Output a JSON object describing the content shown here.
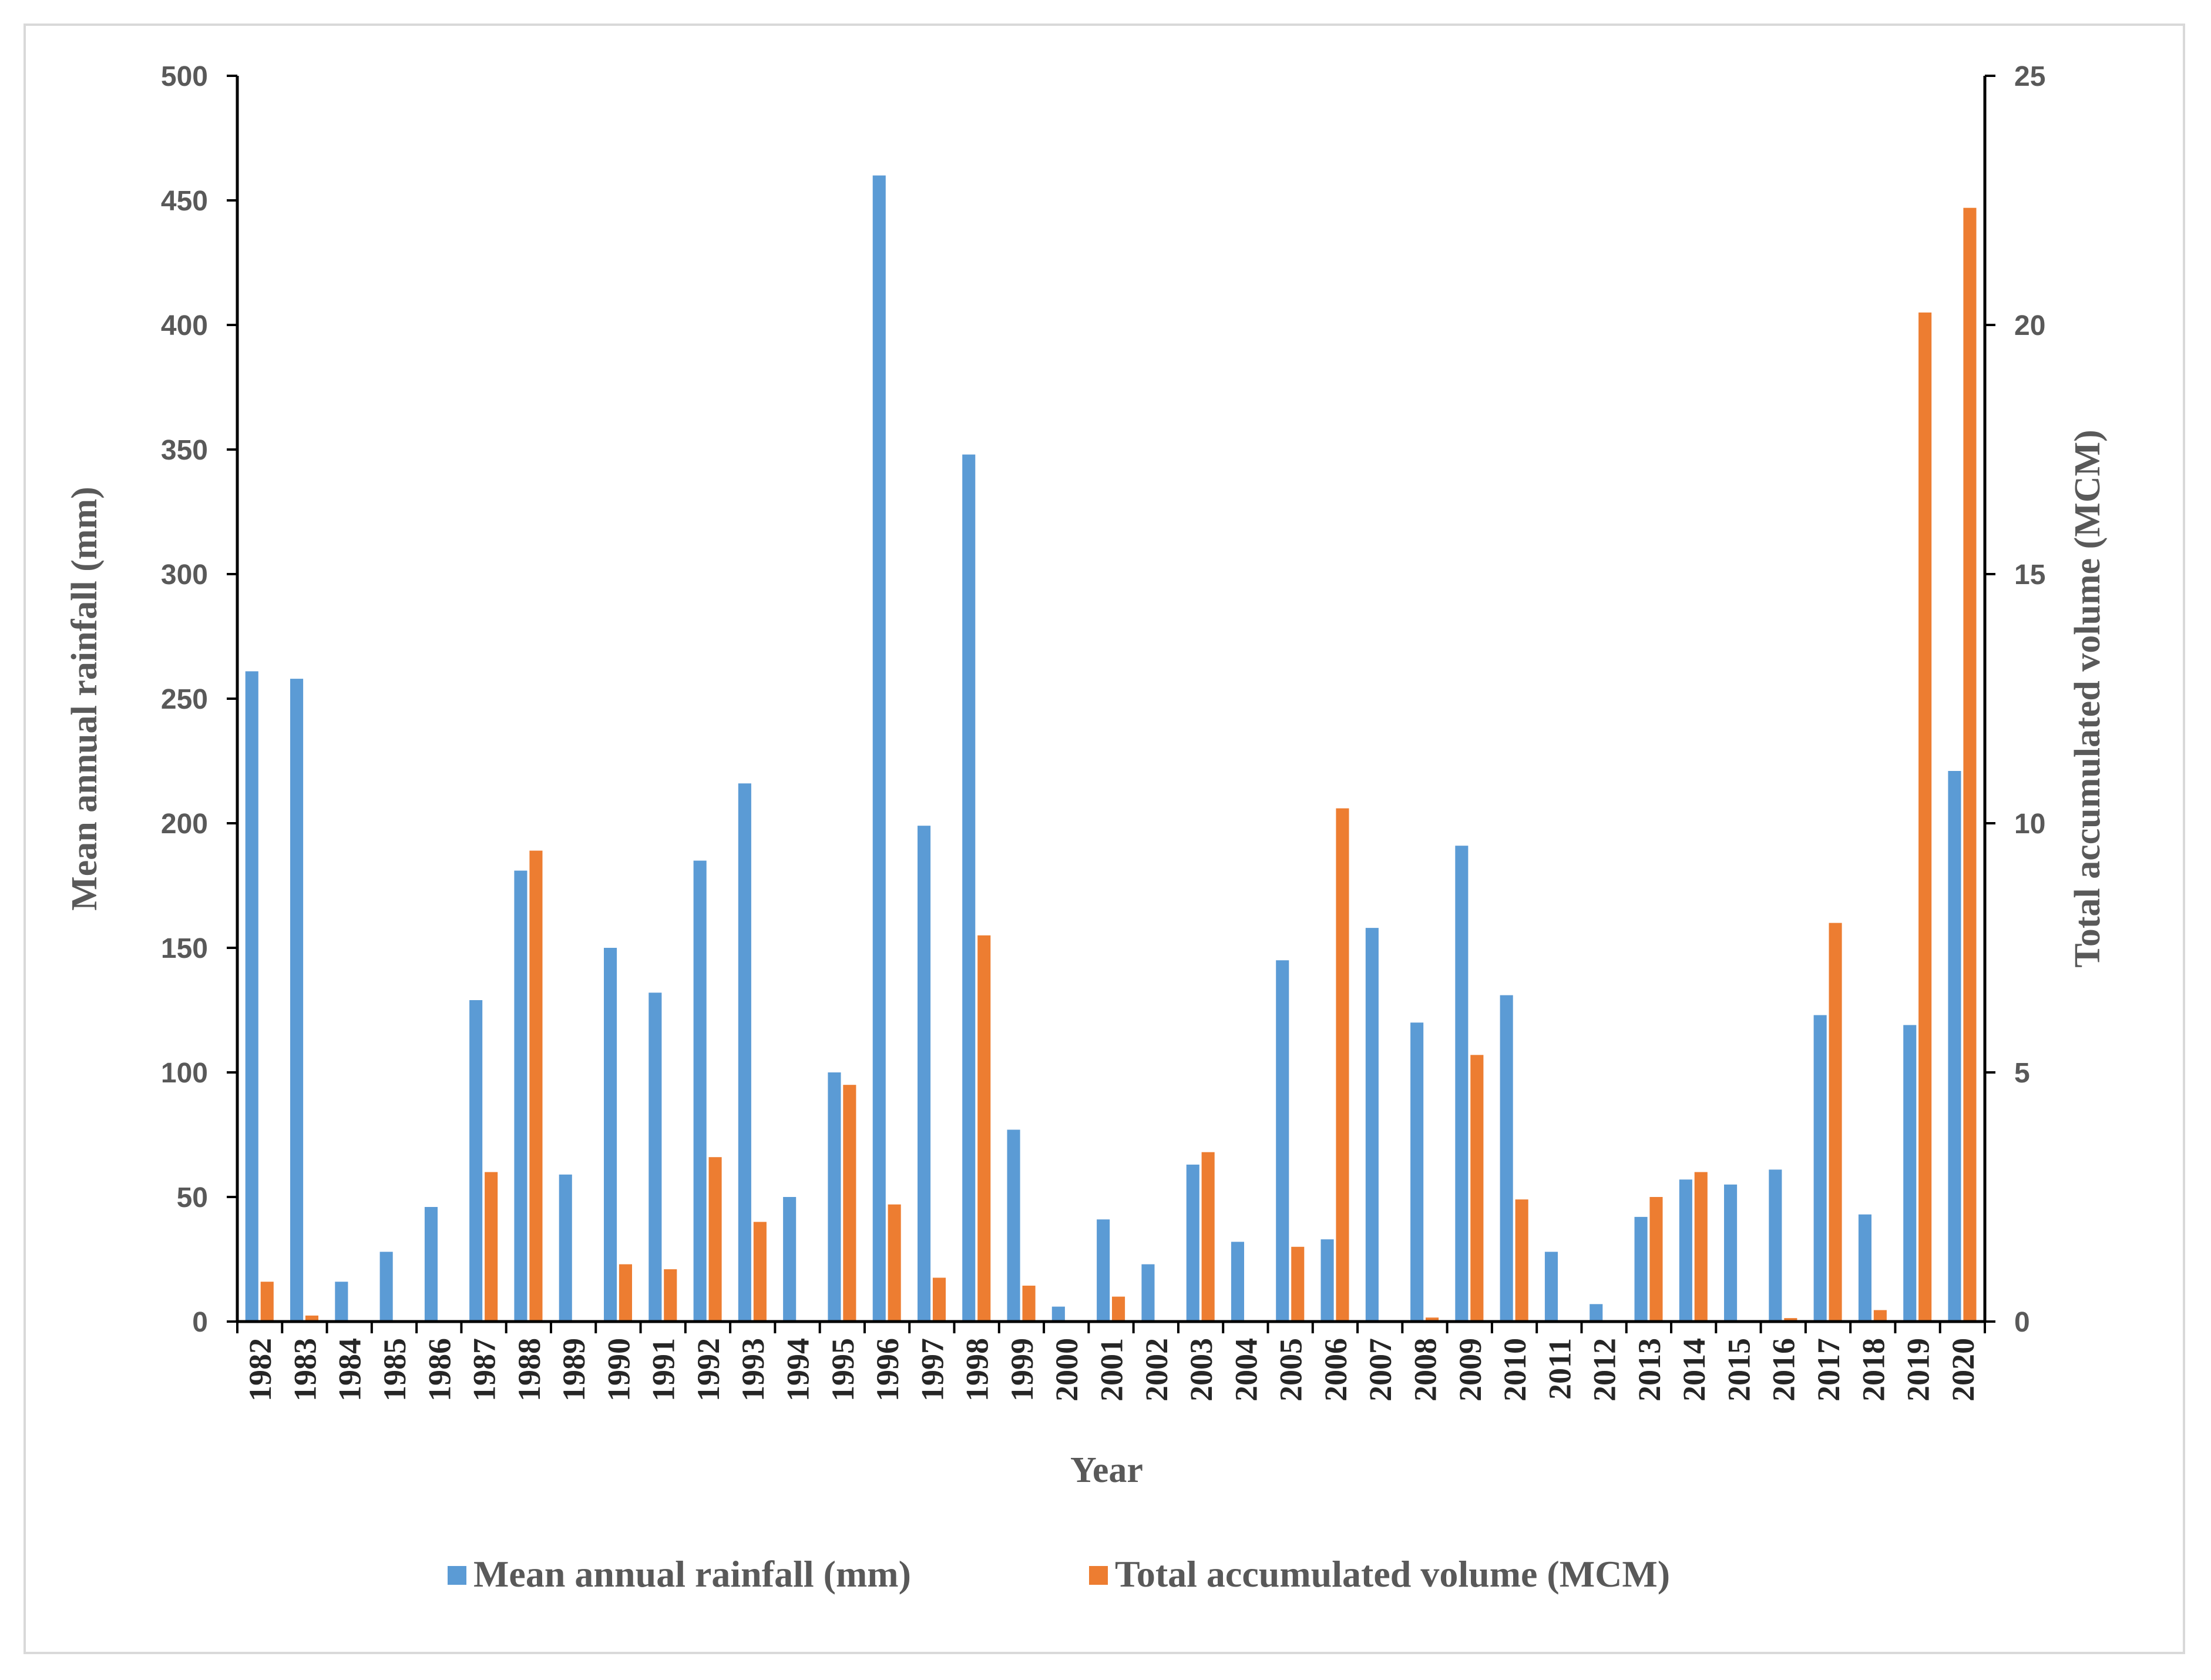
{
  "chart_data": {
    "type": "bar",
    "xlabel": "Year",
    "ylabel": "Mean annual rainfall (mm)",
    "y2label": "Total accumulated volume (MCM)",
    "ylim": [
      0,
      500
    ],
    "y2lim": [
      0,
      25
    ],
    "yticks": [
      0,
      50,
      100,
      150,
      200,
      250,
      300,
      350,
      400,
      450,
      500
    ],
    "y2ticks": [
      0,
      5,
      10,
      15,
      20,
      25
    ],
    "grid": false,
    "legend_position": "bottom",
    "categories": [
      "1982",
      "1983",
      "1984",
      "1985",
      "1986",
      "1987",
      "1988",
      "1989",
      "1990",
      "1991",
      "1992",
      "1993",
      "1994",
      "1995",
      "1996",
      "1997",
      "1998",
      "1999",
      "2000",
      "2001",
      "2002",
      "2003",
      "2004",
      "2005",
      "2006",
      "2007",
      "2008",
      "2009",
      "2010",
      "2011",
      "2012",
      "2013",
      "2014",
      "2015",
      "2016",
      "2017",
      "2018",
      "2019",
      "2020"
    ],
    "series": [
      {
        "name": "Mean annual rainfall (mm)",
        "axis": "left",
        "color": "#5b9bd5",
        "values": [
          261,
          258,
          16,
          28,
          46,
          129,
          181,
          59,
          150,
          132,
          185,
          216,
          50,
          100,
          460,
          199,
          348,
          77,
          6,
          41,
          23,
          63,
          32,
          145,
          33,
          158,
          120,
          191,
          131,
          28,
          7,
          42,
          57,
          55,
          61,
          123,
          43,
          119,
          221
        ]
      },
      {
        "name": "Total accumulated volume (MCM)",
        "axis": "right",
        "color": "#ed7d31",
        "values": [
          0.8,
          0.12,
          0,
          0,
          0,
          3.0,
          9.45,
          0,
          1.15,
          1.05,
          3.3,
          2.0,
          0,
          4.75,
          2.35,
          0.88,
          7.75,
          0.72,
          0,
          0.5,
          0,
          3.4,
          0,
          1.5,
          10.3,
          0,
          0.08,
          5.35,
          2.45,
          0,
          0,
          2.5,
          3.0,
          0,
          0.07,
          8.0,
          0.23,
          20.25,
          22.35
        ]
      }
    ]
  }
}
